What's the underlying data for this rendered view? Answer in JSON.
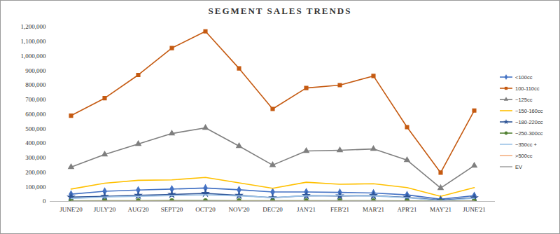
{
  "chart_data": {
    "type": "line",
    "title": "SEGMENT SALES TRENDS",
    "categories": [
      "JUNE'20",
      "JULY'20",
      "AUG'20",
      "SEPT'20",
      "OCT'20",
      "NOV'20",
      "DEC'20",
      "JAN'21",
      "FEB'21",
      "MAR'21",
      "APR'21",
      "MAY'21",
      "JUNE'21"
    ],
    "series": [
      {
        "name": "<100cc",
        "color": "#4472c4",
        "marker": "diamond",
        "values": [
          50000,
          70000,
          78000,
          85000,
          92000,
          80000,
          65000,
          65000,
          62000,
          58000,
          45000,
          15000,
          40000
        ]
      },
      {
        "name": "100-110cc",
        "color": "#c55a11",
        "marker": "square",
        "values": [
          590000,
          710000,
          870000,
          1055000,
          1170000,
          915000,
          636000,
          780000,
          800000,
          863000,
          511000,
          198000,
          625000
        ]
      },
      {
        "name": "~125cc",
        "color": "#7f7f7f",
        "marker": "triangle",
        "values": [
          236000,
          323000,
          395000,
          467000,
          506000,
          381000,
          250000,
          347000,
          352000,
          361000,
          284000,
          92000,
          246000
        ]
      },
      {
        "name": "~150-160cc",
        "color": "#ffc000",
        "marker": "none",
        "values": [
          85000,
          125000,
          145000,
          148000,
          165000,
          128000,
          90000,
          132000,
          118000,
          122000,
          95000,
          35000,
          95000
        ]
      },
      {
        "name": "~180-220cc",
        "color": "#2f5597",
        "marker": "star",
        "values": [
          30000,
          35000,
          42000,
          48000,
          55000,
          42000,
          25000,
          40000,
          38000,
          40000,
          28000,
          8000,
          25000
        ]
      },
      {
        "name": "~250-300cc",
        "color": "#548235",
        "marker": "circle",
        "values": [
          3000,
          4000,
          5000,
          6000,
          6000,
          5000,
          4000,
          5000,
          5000,
          5000,
          3000,
          1000,
          3000
        ]
      },
      {
        "name": "~350cc +",
        "color": "#9dc3e6",
        "marker": "none",
        "values": [
          20000,
          30000,
          35000,
          40000,
          45000,
          38000,
          28000,
          38000,
          40000,
          38000,
          25000,
          5000,
          22000
        ]
      },
      {
        "name": ">500cc",
        "color": "#f4b183",
        "marker": "none",
        "values": [
          300,
          400,
          500,
          500,
          600,
          500,
          400,
          500,
          500,
          500,
          300,
          100,
          400
        ]
      },
      {
        "name": "EV",
        "color": "#a5a5a5",
        "marker": "none",
        "values": [
          800,
          1000,
          1200,
          1400,
          1600,
          1400,
          1200,
          1500,
          1600,
          1800,
          1200,
          300,
          1500
        ]
      }
    ],
    "ylim": [
      0,
      1200000
    ],
    "yticks": [
      0,
      {
        "value": 100000,
        "label": "100,000"
      },
      {
        "value": 200000,
        "label": "200,000"
      },
      {
        "value": 300000,
        "label": "300,000"
      },
      {
        "value": 400000,
        "label": "400,000"
      },
      {
        "value": 500000,
        "label": "500,000"
      },
      {
        "value": 600000,
        "label": "600,000"
      },
      {
        "value": 700000,
        "label": "700,000"
      },
      {
        "value": 800000,
        "label": "800,000"
      },
      {
        "value": 900000,
        "label": "900,000"
      },
      {
        "value": 1000000,
        "label": "1,000,000"
      },
      {
        "value": 1100000,
        "label": "1,100,000"
      },
      {
        "value": 1200000,
        "label": "1,200,000"
      }
    ],
    "grid": false,
    "legend": "right"
  }
}
